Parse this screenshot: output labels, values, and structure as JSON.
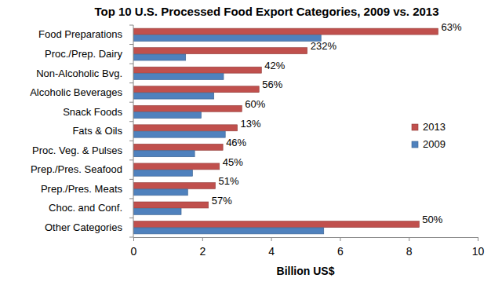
{
  "chart_data": {
    "type": "bar",
    "orientation": "horizontal",
    "title": "Top 10 U.S. Processed Food Export Categories, 2009 vs. 2013",
    "x_label": "Billion US$",
    "categories": [
      "Food Preparations",
      "Proc./Prep. Dairy",
      "Non-Alcoholic Bvg.",
      "Alcoholic Beverages",
      "Snack Foods",
      "Fats & Oils",
      "Proc. Veg. & Pulses",
      "Prep./Pres. Seafood",
      "Prep./Pres. Meats",
      "Choc. and Conf.",
      "Other Categories"
    ],
    "series": [
      {
        "name": "2013",
        "color": "#c0504d",
        "values": [
          8.85,
          5.05,
          3.72,
          3.65,
          3.15,
          3.02,
          2.6,
          2.5,
          2.38,
          2.18,
          8.3
        ]
      },
      {
        "name": "2009",
        "color": "#4f81bd",
        "values": [
          5.45,
          1.52,
          2.62,
          2.34,
          1.97,
          2.67,
          1.78,
          1.72,
          1.58,
          1.39,
          5.53
        ]
      }
    ],
    "annotations": [
      "63%",
      "232%",
      "42%",
      "56%",
      "60%",
      "13%",
      "46%",
      "45%",
      "51%",
      "57%",
      "50%"
    ],
    "xlim": [
      0,
      10
    ],
    "xticks": [
      0,
      2,
      4,
      6,
      8,
      10
    ],
    "grid": false,
    "legend": "right"
  }
}
